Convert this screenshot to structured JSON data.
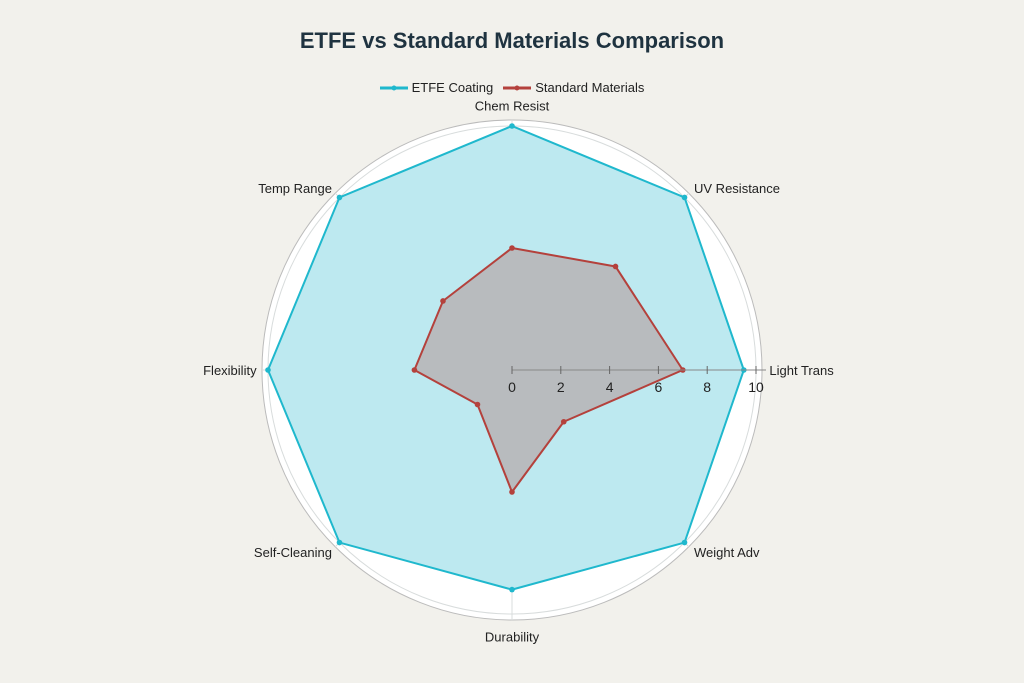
{
  "chart_data": {
    "type": "radar",
    "title": "ETFE vs Standard Materials Comparison",
    "categories": [
      "Chem Resist",
      "UV Resistance",
      "Light Trans",
      "Weight Adv",
      "Durability",
      "Self-Cleaning",
      "Flexibility",
      "Temp Range"
    ],
    "series": [
      {
        "name": "ETFE Coating",
        "values": [
          10,
          10,
          9.5,
          10,
          9,
          10,
          10,
          10
        ],
        "color": "#1fb8cd",
        "fill": "#bde9f0"
      },
      {
        "name": "Standard Materials",
        "values": [
          5,
          6,
          7,
          3,
          5,
          2,
          4,
          4
        ],
        "color": "#b4413c",
        "fill": "rgba(180,150,150,0.55)"
      }
    ],
    "radial_ticks": [
      "0",
      "2",
      "4",
      "6",
      "8",
      "10"
    ],
    "rlim": [
      0,
      10
    ],
    "grid": true,
    "legend": "top-center"
  }
}
